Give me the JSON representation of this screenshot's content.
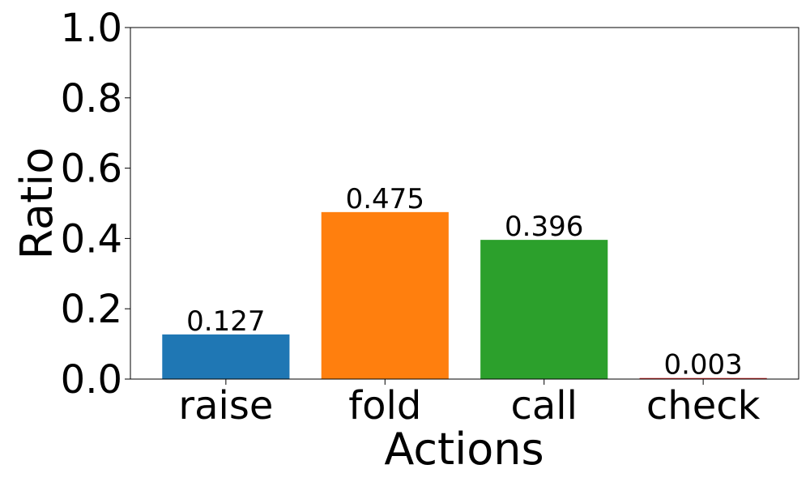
{
  "chart_data": {
    "type": "bar",
    "title": "",
    "xlabel": "Actions",
    "ylabel": "Ratio",
    "ylim": [
      0,
      1.0
    ],
    "yticks": [
      "0.0",
      "0.2",
      "0.4",
      "0.6",
      "0.8",
      "1.0"
    ],
    "categories": [
      "raise",
      "fold",
      "call",
      "check"
    ],
    "values": [
      0.127,
      0.475,
      0.396,
      0.003
    ],
    "value_labels": [
      "0.127",
      "0.475",
      "0.396",
      "0.003"
    ],
    "colors": [
      "#1f77b4",
      "#ff7f0e",
      "#2ca02c",
      "#d62728"
    ],
    "grid": false,
    "legend": false
  }
}
